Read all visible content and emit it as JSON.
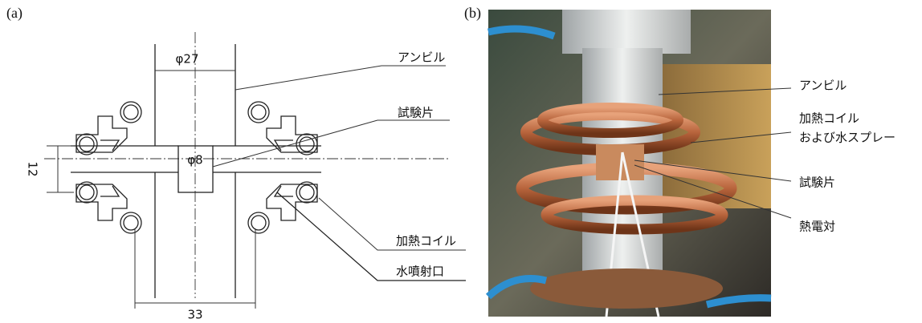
{
  "panel_a": {
    "label": "(a)",
    "anvil_diameter": "φ27",
    "specimen_diameter": "φ8",
    "gap": "12",
    "coil_span": "33",
    "callouts": [
      "アンビル",
      "試験片",
      "加熱コイル",
      "水噴射口"
    ]
  },
  "panel_b": {
    "label": "(b)",
    "callouts": [
      "アンビル",
      "加熱コイル",
      "および水スプレー",
      "試験片",
      "熱電対"
    ]
  }
}
